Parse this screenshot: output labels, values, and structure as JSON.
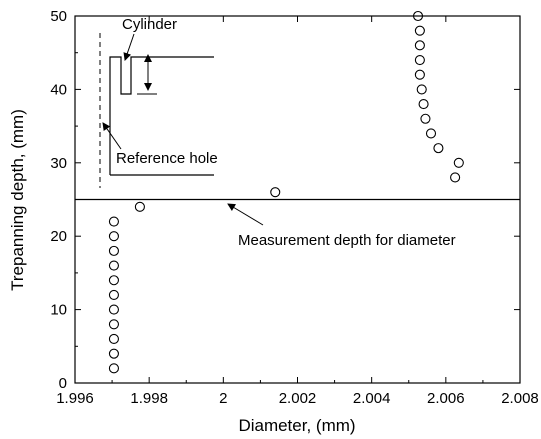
{
  "chart_data": {
    "type": "scatter",
    "xlabel": "Diameter, (mm)",
    "ylabel": "Trepanning depth, (mm)",
    "xlim": [
      1.996,
      2.008
    ],
    "ylim": [
      0,
      50
    ],
    "x_ticks": [
      1.996,
      1.998,
      2,
      2.002,
      2.004,
      2.006,
      2.008
    ],
    "x_tick_labels": [
      "1.996",
      "1.998",
      "2",
      "2.002",
      "2.004",
      "2.006",
      "2.008"
    ],
    "y_ticks": [
      0,
      10,
      20,
      30,
      40,
      50
    ],
    "y_tick_labels": [
      "0",
      "10",
      "20",
      "30",
      "40",
      "50"
    ],
    "grid": false,
    "marker": "open-circle",
    "points": [
      {
        "x": 1.99705,
        "y": 2
      },
      {
        "x": 1.99705,
        "y": 4
      },
      {
        "x": 1.99705,
        "y": 6
      },
      {
        "x": 1.99705,
        "y": 8
      },
      {
        "x": 1.99705,
        "y": 10
      },
      {
        "x": 1.99705,
        "y": 12
      },
      {
        "x": 1.99705,
        "y": 14
      },
      {
        "x": 1.99705,
        "y": 16
      },
      {
        "x": 1.99705,
        "y": 18
      },
      {
        "x": 1.99705,
        "y": 20
      },
      {
        "x": 1.99705,
        "y": 22
      },
      {
        "x": 1.99775,
        "y": 24
      },
      {
        "x": 2.0014,
        "y": 26
      },
      {
        "x": 2.00625,
        "y": 28
      },
      {
        "x": 2.00635,
        "y": 30
      },
      {
        "x": 2.0058,
        "y": 32
      },
      {
        "x": 2.0056,
        "y": 34
      },
      {
        "x": 2.00545,
        "y": 36
      },
      {
        "x": 2.0054,
        "y": 38
      },
      {
        "x": 2.00535,
        "y": 40
      },
      {
        "x": 2.0053,
        "y": 42
      },
      {
        "x": 2.0053,
        "y": 44
      },
      {
        "x": 2.0053,
        "y": 46
      },
      {
        "x": 2.0053,
        "y": 48
      },
      {
        "x": 2.00525,
        "y": 50
      }
    ],
    "reference_line": {
      "y": 25,
      "label": "Measurement depth for diameter"
    },
    "inset": {
      "cylinder_label": "Cylinder",
      "reference_hole_label": "Reference hole"
    }
  }
}
